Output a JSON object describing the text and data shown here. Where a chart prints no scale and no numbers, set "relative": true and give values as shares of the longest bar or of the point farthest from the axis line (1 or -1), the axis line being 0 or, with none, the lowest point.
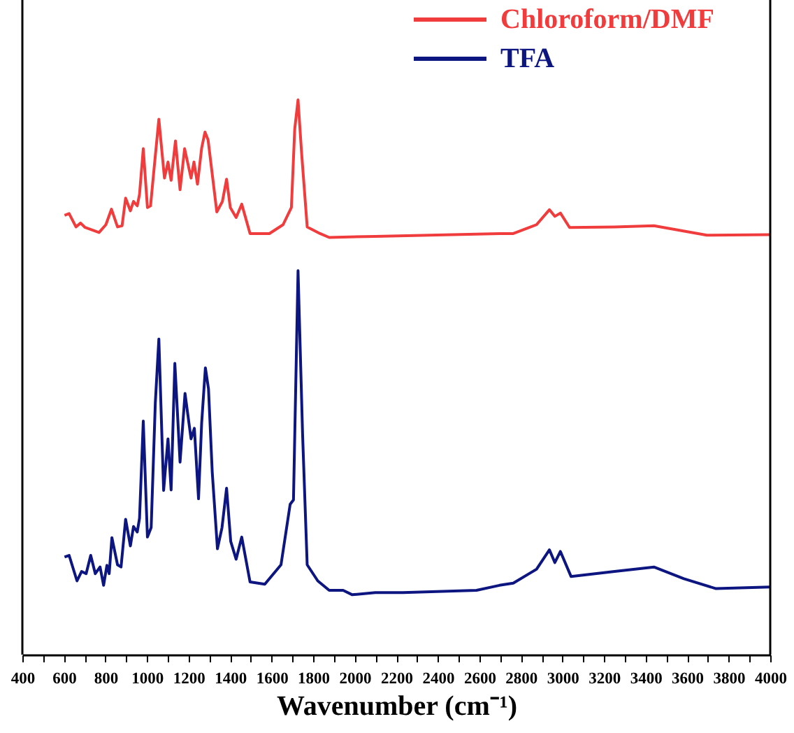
{
  "chart_data": {
    "type": "line",
    "xlabel": "Wavenumber (cm⁻¹)",
    "relative": true,
    "legend": "top right",
    "grid": false,
    "line_style": "solid",
    "marker": "none",
    "xlim": [
      400,
      4000
    ],
    "xticks": [
      400,
      {
        "value": 500,
        "label": null
      },
      600,
      {
        "value": 700,
        "label": null
      },
      800,
      {
        "value": 900,
        "label": null
      },
      1000,
      {
        "value": 1100,
        "label": null
      },
      1200,
      {
        "value": 1300,
        "label": null
      },
      1400,
      {
        "value": 1500,
        "label": null
      },
      1600,
      {
        "value": 1700,
        "label": null
      },
      1800,
      {
        "value": 1900,
        "label": null
      },
      2000,
      {
        "value": 2100,
        "label": null
      },
      2200,
      {
        "value": 2300,
        "label": null
      },
      2400,
      {
        "value": 2500,
        "label": null
      },
      2600,
      {
        "value": 2700,
        "label": null
      },
      2800,
      {
        "value": 2900,
        "label": null
      },
      3000,
      {
        "value": 3100,
        "label": null
      },
      3200,
      {
        "value": 3300,
        "label": null
      },
      3400,
      {
        "value": 3500,
        "label": null
      },
      3600,
      {
        "value": 3700,
        "label": null
      },
      3800,
      {
        "value": 3900,
        "label": null
      },
      4000
    ],
    "series": [
      {
        "name": "Chloroform/DMF",
        "color": "#f03c3c",
        "x": [
          603,
          625,
          658,
          680,
          702,
          769,
          802,
          829,
          858,
          880,
          897,
          920,
          935,
          953,
          964,
          982,
          1002,
          1017,
          1035,
          1057,
          1084,
          1101,
          1116,
          1137,
          1159,
          1181,
          1212,
          1226,
          1243,
          1263,
          1279,
          1294,
          1336,
          1363,
          1383,
          1401,
          1429,
          1456,
          1496,
          1589,
          1655,
          1695,
          1711,
          1727,
          1744,
          1771,
          1833,
          1877,
          2099,
          2697,
          2763,
          2875,
          2937,
          2963,
          2990,
          3034,
          3251,
          3440,
          3695,
          4000
        ],
        "values": [
          0.792,
          0.795,
          0.771,
          0.778,
          0.77,
          0.761,
          0.775,
          0.803,
          0.771,
          0.773,
          0.823,
          0.8,
          0.817,
          0.809,
          0.83,
          0.912,
          0.806,
          0.809,
          0.88,
          0.965,
          0.859,
          0.888,
          0.855,
          0.926,
          0.838,
          0.912,
          0.859,
          0.888,
          0.848,
          0.913,
          0.942,
          0.928,
          0.798,
          0.817,
          0.857,
          0.806,
          0.788,
          0.812,
          0.759,
          0.759,
          0.775,
          0.806,
          0.947,
          1.0,
          0.905,
          0.771,
          0.759,
          0.752,
          0.754,
          0.759,
          0.759,
          0.775,
          0.802,
          0.79,
          0.796,
          0.77,
          0.771,
          0.773,
          0.756,
          0.757
        ]
      },
      {
        "name": "TFA",
        "color": "#0d1680",
        "x": [
          603,
          625,
          663,
          685,
          707,
          729,
          751,
          774,
          791,
          807,
          818,
          831,
          858,
          875,
          897,
          920,
          935,
          953,
          964,
          982,
          1002,
          1020,
          1040,
          1057,
          1080,
          1101,
          1116,
          1134,
          1159,
          1183,
          1212,
          1228,
          1248,
          1263,
          1281,
          1296,
          1314,
          1339,
          1361,
          1383,
          1403,
          1429,
          1456,
          1496,
          1567,
          1645,
          1689,
          1705,
          1727,
          1749,
          1771,
          1822,
          1877,
          1944,
          1988,
          2099,
          2232,
          2586,
          2697,
          2763,
          2875,
          2937,
          2963,
          2990,
          3041,
          3251,
          3440,
          3584,
          3739,
          4000
        ],
        "values": [
          0.176,
          0.179,
          0.133,
          0.15,
          0.146,
          0.179,
          0.146,
          0.158,
          0.125,
          0.161,
          0.146,
          0.211,
          0.162,
          0.158,
          0.244,
          0.196,
          0.231,
          0.221,
          0.246,
          0.421,
          0.212,
          0.229,
          0.454,
          0.569,
          0.296,
          0.389,
          0.297,
          0.525,
          0.347,
          0.471,
          0.389,
          0.408,
          0.281,
          0.417,
          0.517,
          0.479,
          0.329,
          0.191,
          0.229,
          0.3,
          0.204,
          0.172,
          0.212,
          0.131,
          0.127,
          0.162,
          0.271,
          0.279,
          0.692,
          0.396,
          0.162,
          0.133,
          0.116,
          0.116,
          0.108,
          0.112,
          0.112,
          0.116,
          0.125,
          0.129,
          0.154,
          0.189,
          0.166,
          0.186,
          0.141,
          0.15,
          0.158,
          0.137,
          0.119,
          0.122
        ]
      }
    ]
  }
}
